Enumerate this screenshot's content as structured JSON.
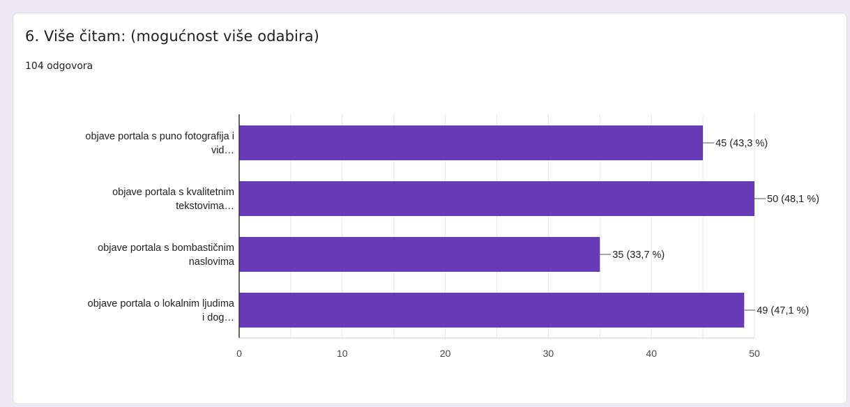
{
  "question": {
    "title": "6. Više čitam: (mogućnost više odabira)",
    "response_count": "104 odgovora"
  },
  "colors": {
    "bar": "#673ab7",
    "grid": "#e6e6e6",
    "axis": "#333333"
  },
  "chart_data": {
    "type": "bar",
    "orientation": "horizontal",
    "title": "6. Više čitam: (mogućnost više odabira)",
    "categories": [
      [
        "objave portala s puno fotografija i",
        "vid…"
      ],
      [
        "objave portala s kvalitetnim",
        "tekstovima…"
      ],
      [
        "objave portala s bombastičnim",
        "naslovima"
      ],
      [
        "objave portala o lokalnim ljudima",
        "i dog…"
      ]
    ],
    "values": [
      45,
      50,
      35,
      49
    ],
    "data_labels": [
      "45 (43,3 %)",
      "50 (48,1 %)",
      "35 (33,7 %)",
      "49 (47,1 %)"
    ],
    "xlim": [
      0,
      50
    ],
    "xticks": [
      0,
      10,
      20,
      30,
      40,
      50
    ],
    "grid": true,
    "legend": "none"
  }
}
